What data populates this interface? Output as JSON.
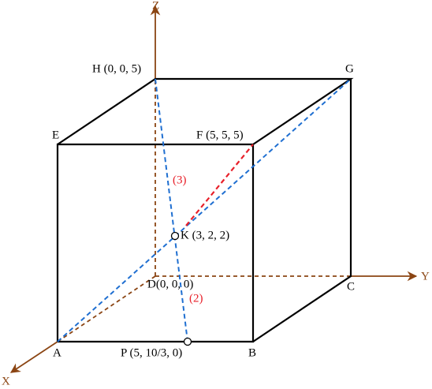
{
  "axes": {
    "z": "Z",
    "y": "Y",
    "x": "X"
  },
  "points": {
    "h": "H (0, 0, 5)",
    "g": "G",
    "e": "E",
    "f": "F (5, 5, 5)",
    "k": "K (3, 2, 2)",
    "d": "D(0, 0, 0)",
    "c": "C",
    "a": "A",
    "p": "P (5, 10/3, 0)",
    "b": "B"
  },
  "segment_labels": [
    "(3)",
    "(2)"
  ]
}
